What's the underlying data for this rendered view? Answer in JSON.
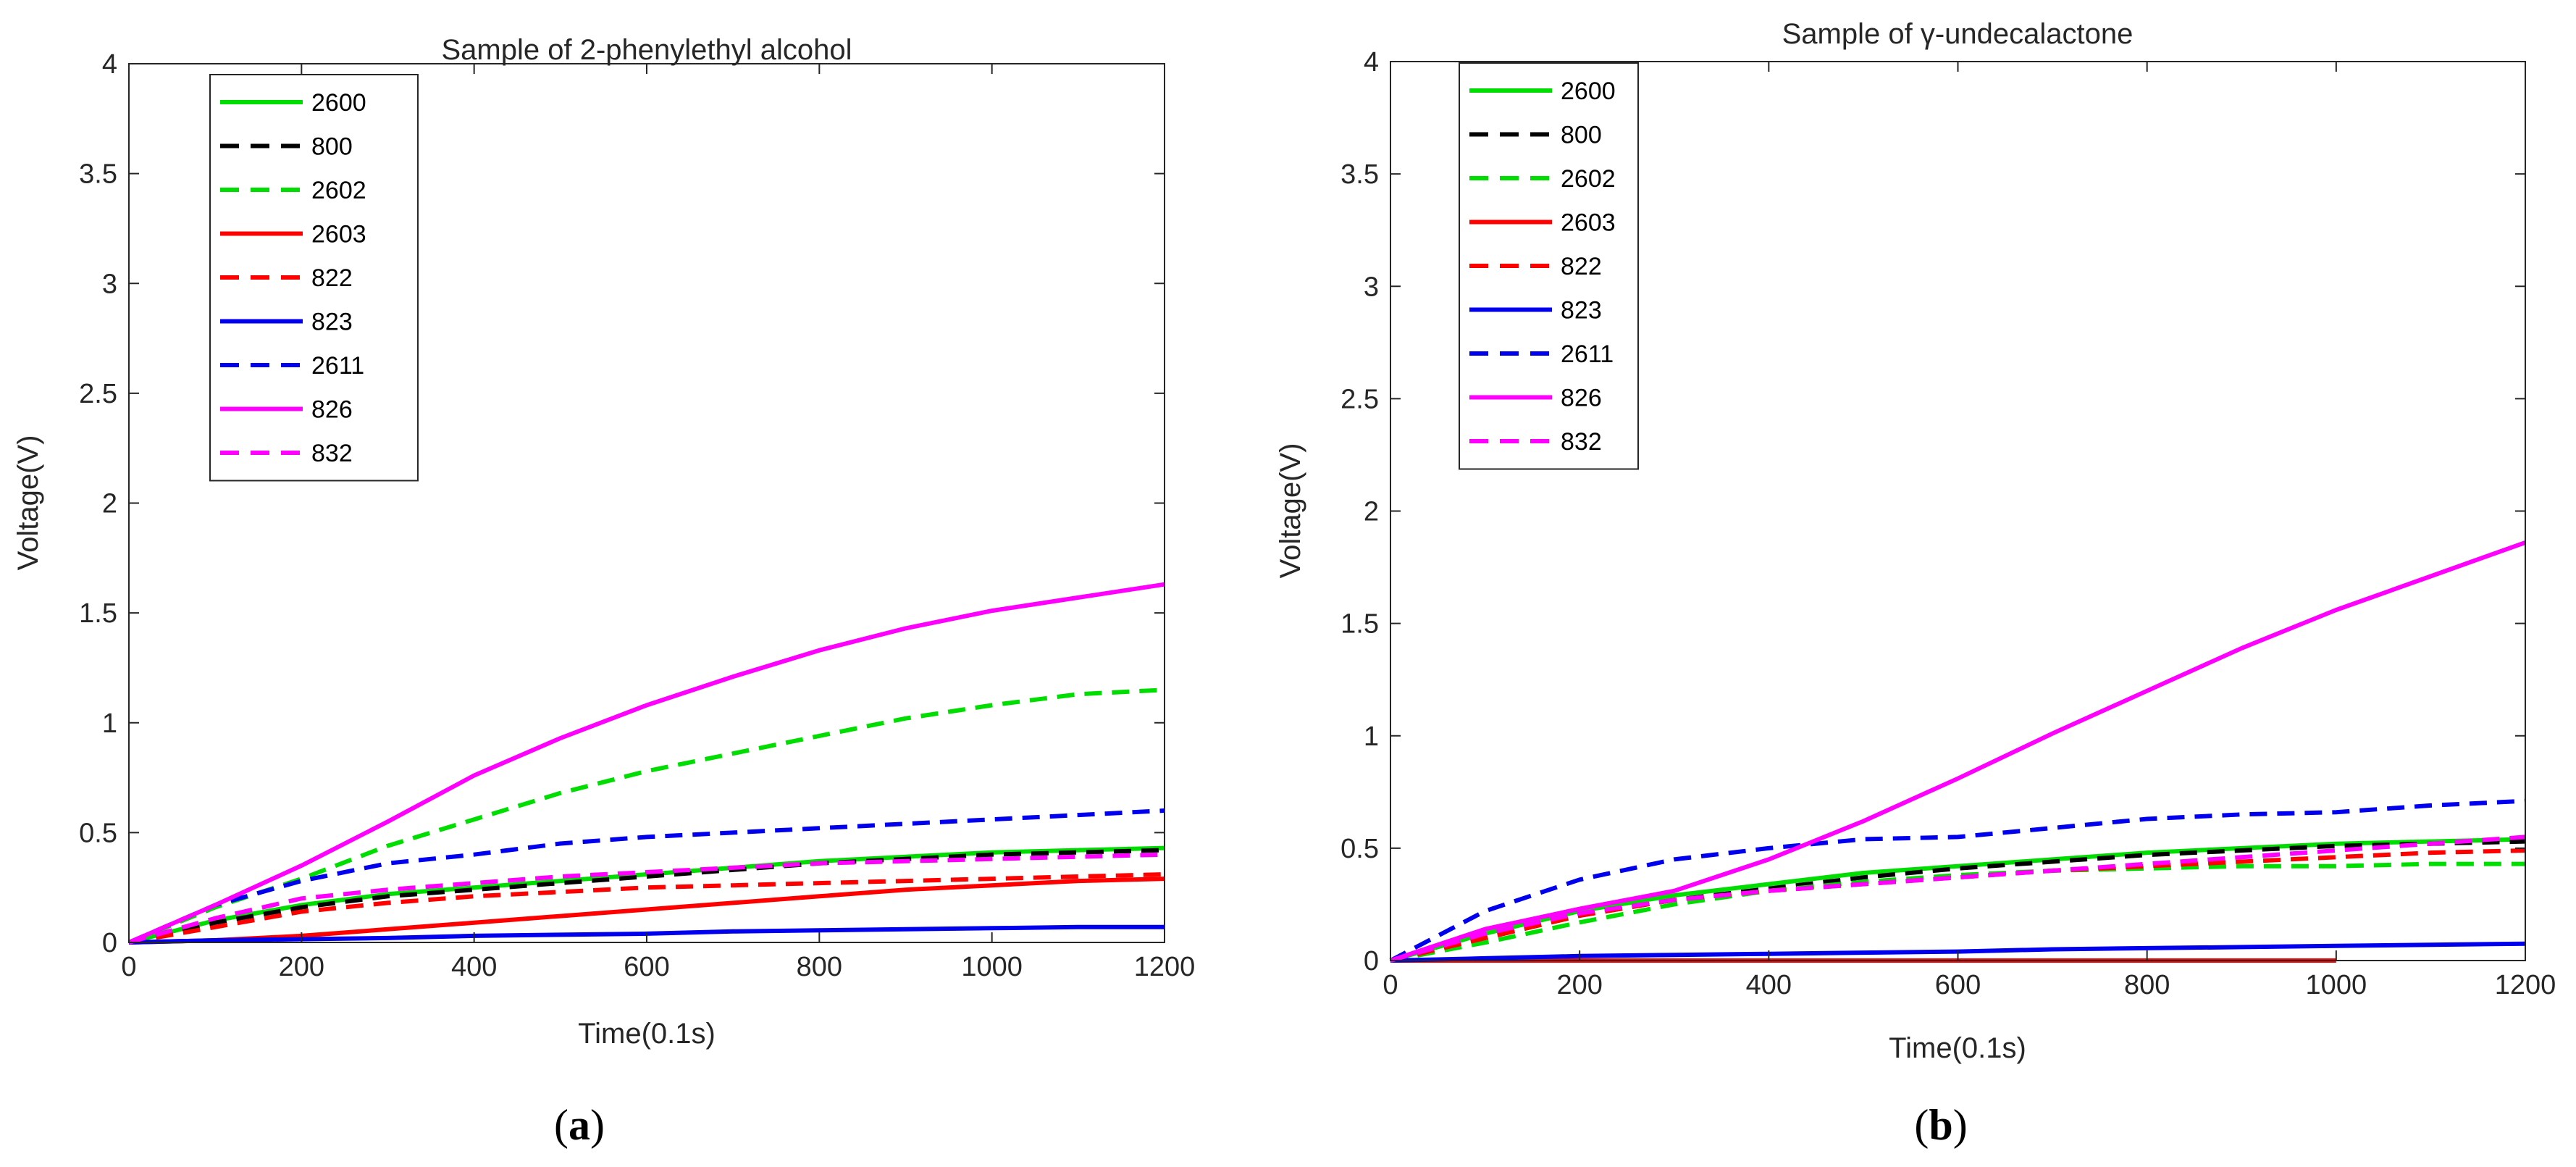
{
  "chart_data": [
    {
      "type": "line",
      "title": "Sample of 2-phenylethyl alcohol",
      "xlabel": "Time(0.1s)",
      "ylabel": "Voltage(V)",
      "xlim": [
        0,
        1200
      ],
      "ylim": [
        0,
        4
      ],
      "xticks": [
        "0",
        "200",
        "400",
        "600",
        "800",
        "1000",
        "1200"
      ],
      "yticks": [
        "0",
        "0.5",
        "1",
        "1.5",
        "2",
        "2.5",
        "3",
        "3.5",
        "4"
      ],
      "legend_position": "top-left",
      "caption_letter": "a",
      "x": [
        0,
        100,
        200,
        300,
        400,
        500,
        600,
        700,
        800,
        900,
        1000,
        1100,
        1200
      ],
      "series": [
        {
          "name": "2600",
          "color": "#00dd00",
          "dash": "solid",
          "values": [
            0,
            0.1,
            0.17,
            0.22,
            0.25,
            0.28,
            0.31,
            0.34,
            0.37,
            0.39,
            0.41,
            0.42,
            0.43
          ]
        },
        {
          "name": "800",
          "color": "#000000",
          "dash": "dashed",
          "values": [
            0,
            0.09,
            0.16,
            0.21,
            0.24,
            0.27,
            0.3,
            0.33,
            0.36,
            0.38,
            0.4,
            0.41,
            0.42
          ]
        },
        {
          "name": "2602",
          "color": "#00dd00",
          "dash": "dashed",
          "values": [
            0,
            0.16,
            0.29,
            0.44,
            0.56,
            0.68,
            0.78,
            0.86,
            0.94,
            1.02,
            1.08,
            1.13,
            1.15
          ]
        },
        {
          "name": "2603",
          "color": "#ff0000",
          "dash": "solid",
          "values": [
            0,
            0.01,
            0.03,
            0.06,
            0.09,
            0.12,
            0.15,
            0.18,
            0.21,
            0.24,
            0.26,
            0.28,
            0.29
          ]
        },
        {
          "name": "822",
          "color": "#ff0000",
          "dash": "dashed",
          "values": [
            0,
            0.07,
            0.14,
            0.18,
            0.21,
            0.23,
            0.25,
            0.26,
            0.27,
            0.28,
            0.29,
            0.3,
            0.31
          ]
        },
        {
          "name": "823",
          "color": "#0000ee",
          "dash": "solid",
          "values": [
            0,
            0.01,
            0.015,
            0.02,
            0.03,
            0.035,
            0.04,
            0.05,
            0.055,
            0.06,
            0.065,
            0.07,
            0.07
          ]
        },
        {
          "name": "2611",
          "color": "#0000ee",
          "dash": "dashed",
          "values": [
            0,
            0.17,
            0.28,
            0.36,
            0.4,
            0.45,
            0.48,
            0.5,
            0.52,
            0.54,
            0.56,
            0.58,
            0.6
          ]
        },
        {
          "name": "826",
          "color": "#ff00ff",
          "dash": "solid",
          "values": [
            0,
            0.17,
            0.35,
            0.55,
            0.76,
            0.93,
            1.08,
            1.21,
            1.33,
            1.43,
            1.51,
            1.57,
            1.63
          ]
        },
        {
          "name": "832",
          "color": "#ff00ff",
          "dash": "dashed",
          "values": [
            0,
            0.11,
            0.2,
            0.24,
            0.27,
            0.3,
            0.32,
            0.34,
            0.36,
            0.37,
            0.38,
            0.39,
            0.4
          ]
        }
      ]
    },
    {
      "type": "line",
      "title": "Sample of γ-undecalactone",
      "xlabel": "Time(0.1s)",
      "ylabel": "Voltage(V)",
      "xlim": [
        0,
        1200
      ],
      "ylim": [
        0,
        4
      ],
      "xticks": [
        "0",
        "200",
        "400",
        "600",
        "800",
        "1000",
        "1200"
      ],
      "yticks": [
        "0",
        "0.5",
        "1",
        "1.5",
        "2",
        "2.5",
        "3",
        "3.5",
        "4"
      ],
      "legend_position": "top-left",
      "caption_letter": "b",
      "x": [
        0,
        100,
        200,
        300,
        400,
        500,
        600,
        700,
        800,
        900,
        1000,
        1100,
        1200
      ],
      "series": [
        {
          "name": "2600",
          "color": "#00dd00",
          "dash": "solid",
          "values": [
            0,
            0.12,
            0.22,
            0.29,
            0.34,
            0.39,
            0.42,
            0.45,
            0.48,
            0.5,
            0.52,
            0.53,
            0.54
          ]
        },
        {
          "name": "800",
          "color": "#000000",
          "dash": "dashed",
          "values": [
            0,
            0.1,
            0.2,
            0.27,
            0.32,
            0.37,
            0.41,
            0.44,
            0.47,
            0.49,
            0.51,
            0.52,
            0.53
          ]
        },
        {
          "name": "2602",
          "color": "#00dd00",
          "dash": "dashed",
          "values": [
            0,
            0.08,
            0.17,
            0.25,
            0.31,
            0.35,
            0.38,
            0.4,
            0.41,
            0.42,
            0.42,
            0.43,
            0.43
          ]
        },
        {
          "name": "2603",
          "color": "#ff0000",
          "dash": "solid",
          "values": [
            0,
            0.0,
            0.0,
            0.0,
            0.0,
            0.0,
            0.0,
            0.0,
            0.0,
            0.0,
            0.0,
            null,
            null
          ]
        },
        {
          "name": "822",
          "color": "#ff0000",
          "dash": "dashed",
          "values": [
            0,
            0.1,
            0.2,
            0.27,
            0.31,
            0.34,
            0.37,
            0.4,
            0.42,
            0.44,
            0.46,
            0.48,
            0.49
          ]
        },
        {
          "name": "823",
          "color": "#0000ee",
          "dash": "solid",
          "values": [
            0,
            0.01,
            0.02,
            0.025,
            0.03,
            0.035,
            0.04,
            0.05,
            0.055,
            0.06,
            0.065,
            0.07,
            0.075
          ]
        },
        {
          "name": "2611",
          "color": "#0000ee",
          "dash": "dashed",
          "values": [
            0,
            0.22,
            0.36,
            0.45,
            0.5,
            0.54,
            0.55,
            0.59,
            0.63,
            0.65,
            0.66,
            0.69,
            0.71
          ]
        },
        {
          "name": "826",
          "color": "#ff00ff",
          "dash": "solid",
          "values": [
            0,
            0.14,
            0.23,
            0.31,
            0.45,
            0.62,
            0.81,
            1.01,
            1.2,
            1.39,
            1.56,
            1.71,
            1.86
          ]
        },
        {
          "name": "832",
          "color": "#ff00ff",
          "dash": "dashed",
          "values": [
            0,
            0.12,
            0.21,
            0.27,
            0.31,
            0.34,
            0.37,
            0.4,
            0.43,
            0.46,
            0.49,
            0.52,
            0.55
          ]
        }
      ]
    }
  ]
}
